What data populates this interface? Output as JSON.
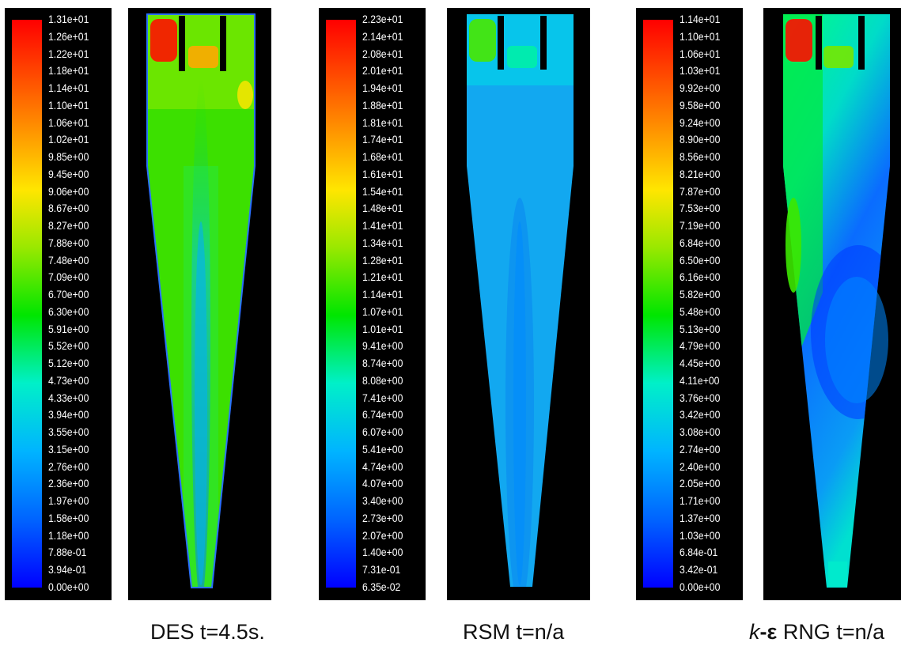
{
  "chart_data": [
    {
      "type": "heatmap",
      "title": "DES t=4.5s.",
      "colorbar": {
        "max": 13.1,
        "min": 0.0,
        "ticks": [
          "1.31e+01",
          "1.26e+01",
          "1.22e+01",
          "1.18e+01",
          "1.14e+01",
          "1.10e+01",
          "1.06e+01",
          "1.02e+01",
          "9.85e+00",
          "9.45e+00",
          "9.06e+00",
          "8.67e+00",
          "8.27e+00",
          "7.88e+00",
          "7.48e+00",
          "7.09e+00",
          "6.70e+00",
          "6.30e+00",
          "5.91e+00",
          "5.52e+00",
          "5.12e+00",
          "4.73e+00",
          "4.33e+00",
          "3.94e+00",
          "3.55e+00",
          "3.15e+00",
          "2.76e+00",
          "2.36e+00",
          "1.97e+00",
          "1.58e+00",
          "1.18e+00",
          "7.88e-01",
          "3.94e-01",
          "0.00e+00"
        ]
      },
      "field": {
        "background": 7.0,
        "features": [
          {
            "region": "inlet-left",
            "value": 12.8
          },
          {
            "region": "vortex-finder",
            "value": 10.2
          },
          {
            "region": "top-right",
            "value": 9.0
          },
          {
            "region": "core",
            "value": 3.0
          }
        ]
      }
    },
    {
      "type": "heatmap",
      "title": "RSM t=n/a",
      "colorbar": {
        "max": 22.3,
        "min": 0.0635,
        "ticks": [
          "2.23e+01",
          "2.14e+01",
          "2.08e+01",
          "2.01e+01",
          "1.94e+01",
          "1.88e+01",
          "1.81e+01",
          "1.74e+01",
          "1.68e+01",
          "1.61e+01",
          "1.54e+01",
          "1.48e+01",
          "1.41e+01",
          "1.34e+01",
          "1.28e+01",
          "1.21e+01",
          "1.14e+01",
          "1.07e+01",
          "1.01e+01",
          "9.41e+00",
          "8.74e+00",
          "8.08e+00",
          "7.41e+00",
          "6.74e+00",
          "6.07e+00",
          "5.41e+00",
          "4.74e+00",
          "4.07e+00",
          "3.40e+00",
          "2.73e+00",
          "2.07e+00",
          "1.40e+00",
          "7.31e-01",
          "6.35e-02"
        ]
      },
      "field": {
        "background": 5.0,
        "features": [
          {
            "region": "inlet-left",
            "value": 12.0
          },
          {
            "region": "vortex-finder",
            "value": 8.5
          },
          {
            "region": "core",
            "value": 4.0
          }
        ]
      }
    },
    {
      "type": "heatmap",
      "title": "k-ε RNG t=n/a",
      "colorbar": {
        "max": 11.4,
        "min": 0.0,
        "ticks": [
          "1.14e+01",
          "1.10e+01",
          "1.06e+01",
          "1.03e+01",
          "9.92e+00",
          "9.58e+00",
          "9.24e+00",
          "8.90e+00",
          "8.56e+00",
          "8.21e+00",
          "7.87e+00",
          "7.53e+00",
          "7.19e+00",
          "6.84e+00",
          "6.50e+00",
          "6.16e+00",
          "5.82e+00",
          "5.48e+00",
          "5.13e+00",
          "4.79e+00",
          "4.45e+00",
          "4.11e+00",
          "3.76e+00",
          "3.42e+00",
          "3.08e+00",
          "2.74e+00",
          "2.40e+00",
          "2.05e+00",
          "1.71e+00",
          "1.37e+00",
          "1.03e+00",
          "6.84e-01",
          "3.42e-01",
          "0.00e+00"
        ]
      },
      "field": {
        "background": 3.5,
        "features": [
          {
            "region": "inlet-left",
            "value": 11.2
          },
          {
            "region": "vortex-finder",
            "value": 6.5
          },
          {
            "region": "upper-left-wall",
            "value": 6.0
          },
          {
            "region": "lower-right-core",
            "value": 2.0
          },
          {
            "region": "bottom-outlet",
            "value": 4.0
          }
        ]
      }
    }
  ],
  "captions": [
    {
      "name": "DES t=4.5s."
    },
    {
      "name": "RSM t=n/a"
    },
    {
      "prefix": "k",
      "symbol": "-ε",
      "suffix": " RNG t=n/a"
    }
  ]
}
